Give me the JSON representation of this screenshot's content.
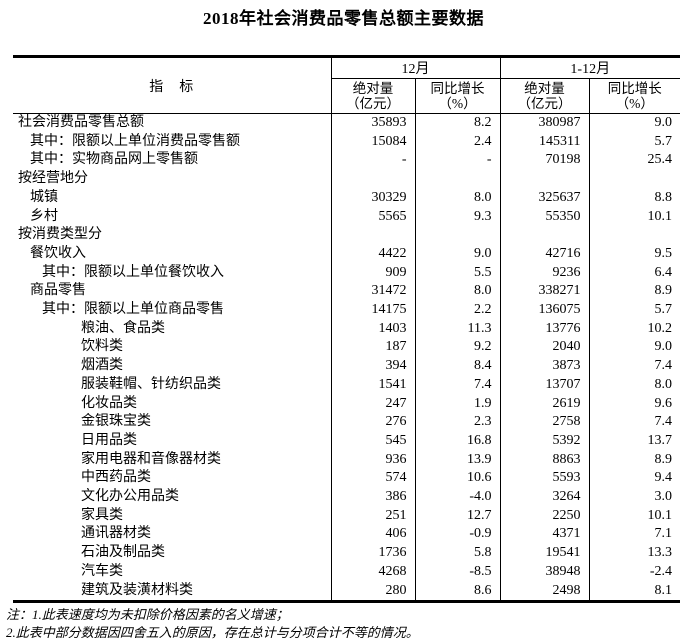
{
  "title": "2018年社会消费品零售总额主要数据",
  "colors": {
    "text": "#000000",
    "border": "#000000",
    "background": "#ffffff"
  },
  "table": {
    "indicator_header": "指　标",
    "groups": [
      {
        "label": "12月"
      },
      {
        "label": "1-12月"
      }
    ],
    "sub_headers": [
      {
        "l1": "绝对量",
        "l2": "（亿元）"
      },
      {
        "l1": "同比增长",
        "l2": "（%）"
      },
      {
        "l1": "绝对量",
        "l2": "（亿元）"
      },
      {
        "l1": "同比增长",
        "l2": "（%）"
      }
    ],
    "rows": [
      {
        "label": "社会消费品零售总额",
        "indent": 0,
        "values": [
          "35893",
          "8.2",
          "380987",
          "9.0"
        ]
      },
      {
        "label": "其中：限额以上单位消费品零售额",
        "indent": 1,
        "values": [
          "15084",
          "2.4",
          "145311",
          "5.7"
        ]
      },
      {
        "label": "其中：实物商品网上零售额",
        "indent": 1,
        "values": [
          "-",
          "-",
          "70198",
          "25.4"
        ]
      },
      {
        "label": "按经营地分",
        "indent": 0,
        "values": [
          "",
          "",
          "",
          ""
        ]
      },
      {
        "label": "城镇",
        "indent": 1,
        "values": [
          "30329",
          "8.0",
          "325637",
          "8.8"
        ]
      },
      {
        "label": "乡村",
        "indent": 1,
        "values": [
          "5565",
          "9.3",
          "55350",
          "10.1"
        ]
      },
      {
        "label": "按消费类型分",
        "indent": 0,
        "values": [
          "",
          "",
          "",
          ""
        ]
      },
      {
        "label": "餐饮收入",
        "indent": 1,
        "values": [
          "4422",
          "9.0",
          "42716",
          "9.5"
        ]
      },
      {
        "label": "其中：限额以上单位餐饮收入",
        "indent": 2,
        "values": [
          "909",
          "5.5",
          "9236",
          "6.4"
        ]
      },
      {
        "label": "商品零售",
        "indent": 1,
        "values": [
          "31472",
          "8.0",
          "338271",
          "8.9"
        ]
      },
      {
        "label": "其中：限额以上单位商品零售",
        "indent": 2,
        "values": [
          "14175",
          "2.2",
          "136075",
          "5.7"
        ]
      },
      {
        "label": "粮油、食品类",
        "indent": 3,
        "values": [
          "1403",
          "11.3",
          "13776",
          "10.2"
        ]
      },
      {
        "label": "饮料类",
        "indent": 3,
        "values": [
          "187",
          "9.2",
          "2040",
          "9.0"
        ]
      },
      {
        "label": "烟酒类",
        "indent": 3,
        "values": [
          "394",
          "8.4",
          "3873",
          "7.4"
        ]
      },
      {
        "label": "服装鞋帽、针纺织品类",
        "indent": 3,
        "values": [
          "1541",
          "7.4",
          "13707",
          "8.0"
        ]
      },
      {
        "label": "化妆品类",
        "indent": 3,
        "values": [
          "247",
          "1.9",
          "2619",
          "9.6"
        ]
      },
      {
        "label": "金银珠宝类",
        "indent": 3,
        "values": [
          "276",
          "2.3",
          "2758",
          "7.4"
        ]
      },
      {
        "label": "日用品类",
        "indent": 3,
        "values": [
          "545",
          "16.8",
          "5392",
          "13.7"
        ]
      },
      {
        "label": "家用电器和音像器材类",
        "indent": 3,
        "values": [
          "936",
          "13.9",
          "8863",
          "8.9"
        ]
      },
      {
        "label": "中西药品类",
        "indent": 3,
        "values": [
          "574",
          "10.6",
          "5593",
          "9.4"
        ]
      },
      {
        "label": "文化办公用品类",
        "indent": 3,
        "values": [
          "386",
          "-4.0",
          "3264",
          "3.0"
        ]
      },
      {
        "label": "家具类",
        "indent": 3,
        "values": [
          "251",
          "12.7",
          "2250",
          "10.1"
        ]
      },
      {
        "label": "通讯器材类",
        "indent": 3,
        "values": [
          "406",
          "-0.9",
          "4371",
          "7.1"
        ]
      },
      {
        "label": "石油及制品类",
        "indent": 3,
        "values": [
          "1736",
          "5.8",
          "19541",
          "13.3"
        ]
      },
      {
        "label": "汽车类",
        "indent": 3,
        "values": [
          "4268",
          "-8.5",
          "38948",
          "-2.4"
        ]
      },
      {
        "label": "建筑及装潢材料类",
        "indent": 3,
        "values": [
          "280",
          "8.6",
          "2498",
          "8.1"
        ]
      }
    ],
    "notes": [
      "注：1.此表速度均为未扣除价格因素的名义增速；",
      "2.此表中部分数据因四舍五入的原因，存在总计与分项合计不等的情况。"
    ]
  }
}
